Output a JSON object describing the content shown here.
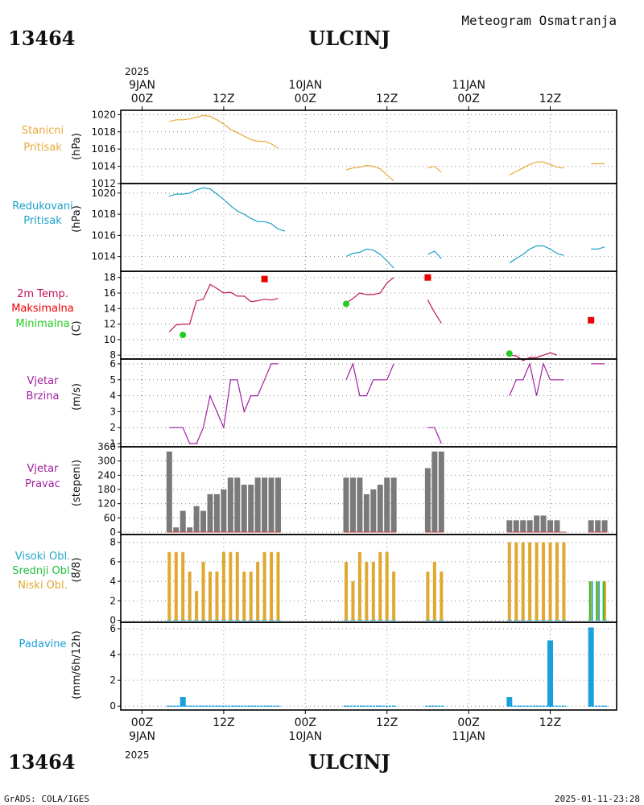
{
  "header": {
    "station_id": "13464",
    "station_name": "ULCINJ",
    "subtitle": "Meteogram Osmatranja"
  },
  "footer": {
    "credit": "GrADS: COLA/IGES",
    "timestamp": "2025-01-11-23:28"
  },
  "time_axis": {
    "year": "2025",
    "date_labels": [
      "9JAN",
      "10JAN",
      "11JAN"
    ],
    "hour_labels": [
      "00Z",
      "12Z",
      "00Z",
      "12Z",
      "00Z",
      "12Z"
    ],
    "hour_positions": [
      0,
      12,
      24,
      36,
      48,
      60
    ]
  },
  "colors": {
    "station_pressure": "#e8a838",
    "reduced_pressure": "#1aa0c8",
    "temp_2m": "#c0145a",
    "temp_max": "#ee0000",
    "temp_min": "#22cc22",
    "wind": "#a020a0",
    "bars_gray": "#7a7a7a",
    "cloud_high": "#20a8c8",
    "cloud_mid": "#20c040",
    "cloud_low": "#e0a830",
    "precip": "#1aa0dd",
    "grid": "#888888"
  },
  "chart_data": [
    {
      "type": "line",
      "panel": "station_pressure",
      "label_lines": [
        "Stanicni",
        "Pritisak"
      ],
      "unit": "(hPa)",
      "ylim": [
        1012,
        1020.5
      ],
      "yticks": [
        1012,
        1014,
        1016,
        1018,
        1020
      ],
      "segments": [
        [
          [
            4,
            1019.2
          ],
          [
            5,
            1019.4
          ],
          [
            6,
            1019.4
          ],
          [
            7,
            1019.5
          ],
          [
            8,
            1019.7
          ],
          [
            9,
            1019.9
          ],
          [
            10,
            1019.8
          ],
          [
            11,
            1019.4
          ],
          [
            12,
            1018.9
          ],
          [
            13,
            1018.3
          ],
          [
            14,
            1017.9
          ],
          [
            15,
            1017.5
          ],
          [
            16,
            1017.1
          ],
          [
            17,
            1016.9
          ],
          [
            18,
            1016.9
          ],
          [
            19,
            1016.6
          ],
          [
            20,
            1016.1
          ]
        ],
        [
          [
            30,
            1013.6
          ],
          [
            31,
            1013.8
          ],
          [
            32,
            1013.9
          ],
          [
            33,
            1014.1
          ],
          [
            34,
            1014.0
          ],
          [
            35,
            1013.7
          ],
          [
            36,
            1013.0
          ],
          [
            37,
            1012.3
          ]
        ],
        [
          [
            42,
            1013.8
          ],
          [
            43,
            1014.0
          ],
          [
            44,
            1013.3
          ]
        ],
        [
          [
            54,
            1013.0
          ],
          [
            55,
            1013.4
          ],
          [
            56,
            1013.8
          ],
          [
            57,
            1014.2
          ],
          [
            58,
            1014.5
          ],
          [
            59,
            1014.5
          ],
          [
            60,
            1014.2
          ],
          [
            61,
            1013.9
          ],
          [
            62,
            1013.8
          ]
        ],
        [
          [
            66,
            1014.3
          ],
          [
            67,
            1014.3
          ],
          [
            68,
            1014.3
          ]
        ]
      ]
    },
    {
      "type": "line",
      "panel": "reduced_pressure",
      "label_lines": [
        "Redukovani",
        "Pritisak"
      ],
      "unit": "(hPa)",
      "ylim": [
        1012.6,
        1020.9
      ],
      "yticks": [
        1014,
        1016,
        1018,
        1020
      ],
      "segments": [
        [
          [
            4,
            1019.7
          ],
          [
            5,
            1019.9
          ],
          [
            6,
            1019.9
          ],
          [
            7,
            1020.0
          ],
          [
            8,
            1020.3
          ],
          [
            9,
            1020.5
          ],
          [
            10,
            1020.4
          ],
          [
            11,
            1019.9
          ],
          [
            12,
            1019.4
          ],
          [
            13,
            1018.8
          ],
          [
            14,
            1018.3
          ],
          [
            15,
            1018.0
          ],
          [
            16,
            1017.6
          ],
          [
            17,
            1017.3
          ],
          [
            18,
            1017.3
          ],
          [
            19,
            1017.1
          ],
          [
            20,
            1016.6
          ],
          [
            21,
            1016.4
          ]
        ],
        [
          [
            30,
            1014.0
          ],
          [
            31,
            1014.3
          ],
          [
            32,
            1014.4
          ],
          [
            33,
            1014.7
          ],
          [
            34,
            1014.6
          ],
          [
            35,
            1014.2
          ],
          [
            36,
            1013.6
          ],
          [
            37,
            1012.9
          ]
        ],
        [
          [
            42,
            1014.2
          ],
          [
            43,
            1014.5
          ],
          [
            44,
            1013.8
          ]
        ],
        [
          [
            54,
            1013.4
          ],
          [
            55,
            1013.8
          ],
          [
            56,
            1014.2
          ],
          [
            57,
            1014.7
          ],
          [
            58,
            1015.0
          ],
          [
            59,
            1015.0
          ],
          [
            60,
            1014.7
          ],
          [
            61,
            1014.3
          ],
          [
            62,
            1014.1
          ]
        ],
        [
          [
            66,
            1014.7
          ],
          [
            67,
            1014.7
          ],
          [
            68,
            1014.9
          ]
        ]
      ]
    },
    {
      "type": "line",
      "panel": "temperature",
      "label_lines": [
        "2m Temp.",
        "Maksimalna",
        "Minimalna"
      ],
      "unit": "(C)",
      "ylim": [
        7.5,
        18.8
      ],
      "yticks": [
        8,
        10,
        12,
        14,
        16,
        18
      ],
      "segments": [
        [
          [
            4,
            11.0
          ],
          [
            5,
            11.9
          ],
          [
            6,
            12.0
          ],
          [
            7,
            12.0
          ],
          [
            8,
            15.0
          ],
          [
            9,
            15.2
          ],
          [
            10,
            17.1
          ],
          [
            11,
            16.6
          ],
          [
            12,
            16.0
          ],
          [
            13,
            16.1
          ],
          [
            14,
            15.6
          ],
          [
            15,
            15.6
          ],
          [
            16,
            14.9
          ],
          [
            17,
            15.0
          ],
          [
            18,
            15.2
          ],
          [
            19,
            15.1
          ],
          [
            20,
            15.3
          ]
        ],
        [
          [
            30,
            14.7
          ],
          [
            31,
            15.3
          ],
          [
            32,
            16.0
          ],
          [
            33,
            15.8
          ],
          [
            34,
            15.8
          ],
          [
            35,
            16.0
          ],
          [
            36,
            17.3
          ],
          [
            37,
            18.0
          ]
        ],
        [
          [
            42,
            15.1
          ],
          [
            43,
            13.5
          ],
          [
            44,
            12.1
          ]
        ],
        [
          [
            54,
            8.0
          ],
          [
            55,
            7.9
          ],
          [
            56,
            7.3
          ],
          [
            57,
            7.7
          ],
          [
            58,
            7.7
          ],
          [
            59,
            8.0
          ],
          [
            60,
            8.3
          ],
          [
            61,
            8.0
          ]
        ]
      ],
      "max_points": [
        [
          18,
          17.8
        ],
        [
          42,
          18.0
        ],
        [
          66,
          12.5
        ]
      ],
      "min_points": [
        [
          6,
          10.6
        ],
        [
          30,
          14.6
        ],
        [
          54,
          8.2
        ]
      ]
    },
    {
      "type": "line",
      "panel": "wind_speed",
      "label_lines": [
        "Vjetar",
        "Brzina"
      ],
      "unit": "(m/s)",
      "ylim": [
        0.8,
        6.3
      ],
      "yticks": [
        1,
        2,
        3,
        4,
        5,
        6
      ],
      "segments": [
        [
          [
            4,
            2
          ],
          [
            5,
            2
          ],
          [
            6,
            2
          ],
          [
            7,
            1
          ],
          [
            8,
            1
          ],
          [
            9,
            2
          ],
          [
            10,
            4
          ],
          [
            11,
            3
          ],
          [
            12,
            2
          ],
          [
            13,
            5
          ],
          [
            14,
            5
          ],
          [
            15,
            3
          ],
          [
            16,
            4
          ],
          [
            17,
            4
          ],
          [
            18,
            5
          ],
          [
            19,
            6
          ],
          [
            20,
            6
          ]
        ],
        [
          [
            30,
            5
          ],
          [
            31,
            6
          ],
          [
            32,
            4
          ],
          [
            33,
            4
          ],
          [
            34,
            5
          ],
          [
            35,
            5
          ],
          [
            36,
            5
          ],
          [
            37,
            6
          ]
        ],
        [
          [
            42,
            2
          ],
          [
            43,
            2
          ],
          [
            44,
            1
          ]
        ],
        [
          [
            54,
            4
          ],
          [
            55,
            5
          ],
          [
            56,
            5
          ],
          [
            57,
            6
          ],
          [
            58,
            4
          ],
          [
            59,
            6
          ],
          [
            60,
            5
          ],
          [
            61,
            5
          ],
          [
            62,
            5
          ]
        ],
        [
          [
            66,
            6
          ],
          [
            67,
            6
          ],
          [
            68,
            6
          ]
        ]
      ]
    },
    {
      "type": "bar",
      "panel": "wind_direction",
      "label_lines": [
        "Vjetar",
        "Pravac"
      ],
      "unit": "(stepeni)",
      "ylim": [
        -10,
        360
      ],
      "yticks": [
        0,
        60,
        120,
        180,
        240,
        300,
        360
      ],
      "ytick_labels": [
        "0",
        "60",
        "120",
        "180",
        "240",
        "300",
        "360"
      ],
      "bars": [
        [
          4,
          340
        ],
        [
          5,
          20
        ],
        [
          6,
          90
        ],
        [
          7,
          20
        ],
        [
          8,
          110
        ],
        [
          9,
          90
        ],
        [
          10,
          160
        ],
        [
          11,
          160
        ],
        [
          12,
          180
        ],
        [
          13,
          230
        ],
        [
          14,
          230
        ],
        [
          15,
          200
        ],
        [
          16,
          200
        ],
        [
          17,
          230
        ],
        [
          18,
          230
        ],
        [
          19,
          230
        ],
        [
          20,
          230
        ],
        [
          30,
          230
        ],
        [
          31,
          230
        ],
        [
          32,
          230
        ],
        [
          33,
          160
        ],
        [
          34,
          180
        ],
        [
          35,
          200
        ],
        [
          36,
          230
        ],
        [
          37,
          230
        ],
        [
          42,
          270
        ],
        [
          43,
          340
        ],
        [
          44,
          340
        ],
        [
          54,
          50
        ],
        [
          55,
          50
        ],
        [
          56,
          50
        ],
        [
          57,
          50
        ],
        [
          58,
          70
        ],
        [
          59,
          70
        ],
        [
          60,
          50
        ],
        [
          61,
          50
        ],
        [
          66,
          50
        ],
        [
          67,
          50
        ],
        [
          68,
          50
        ]
      ]
    },
    {
      "type": "bar",
      "panel": "clouds",
      "label_lines": [
        "Visoki Obl.",
        "Srednji Obl.",
        "Niski Obl."
      ],
      "unit": "(8/8)",
      "ylim": [
        -0.2,
        8.8
      ],
      "yticks": [
        0,
        2,
        4,
        6,
        8
      ],
      "low_bars": [
        [
          4,
          7
        ],
        [
          5,
          7
        ],
        [
          6,
          7
        ],
        [
          7,
          5
        ],
        [
          8,
          3
        ],
        [
          9,
          6
        ],
        [
          10,
          5
        ],
        [
          11,
          5
        ],
        [
          12,
          7
        ],
        [
          13,
          7
        ],
        [
          14,
          7
        ],
        [
          15,
          5
        ],
        [
          16,
          5
        ],
        [
          17,
          6
        ],
        [
          18,
          7
        ],
        [
          19,
          7
        ],
        [
          20,
          7
        ],
        [
          30,
          6
        ],
        [
          31,
          4
        ],
        [
          32,
          7
        ],
        [
          33,
          6
        ],
        [
          34,
          6
        ],
        [
          35,
          7
        ],
        [
          36,
          7
        ],
        [
          37,
          5
        ],
        [
          42,
          5
        ],
        [
          43,
          6
        ],
        [
          44,
          5
        ],
        [
          54,
          8
        ],
        [
          55,
          8
        ],
        [
          56,
          8
        ],
        [
          57,
          8
        ],
        [
          58,
          8
        ],
        [
          59,
          8
        ],
        [
          60,
          8
        ],
        [
          61,
          8
        ],
        [
          62,
          8
        ],
        [
          66,
          4
        ],
        [
          67,
          4
        ],
        [
          68,
          4
        ]
      ],
      "mid_bars": [
        [
          66,
          4
        ],
        [
          67,
          4
        ],
        [
          68,
          4
        ]
      ],
      "high_bars": [
        [
          66,
          4
        ],
        [
          67,
          4
        ]
      ]
    },
    {
      "type": "bar",
      "panel": "precipitation",
      "label_lines": [
        "Padavine"
      ],
      "unit": "(mm/6h/12h)",
      "ylim": [
        -0.3,
        6.5
      ],
      "yticks": [
        0,
        2,
        4,
        6
      ],
      "bars": [
        [
          6,
          0.7
        ],
        [
          54,
          0.7
        ],
        [
          60,
          5.1
        ],
        [
          66,
          6.1
        ]
      ],
      "trace_segments": [
        [
          4,
          20
        ],
        [
          30,
          37
        ],
        [
          42,
          44
        ],
        [
          54,
          62
        ],
        [
          66,
          68
        ]
      ]
    }
  ]
}
